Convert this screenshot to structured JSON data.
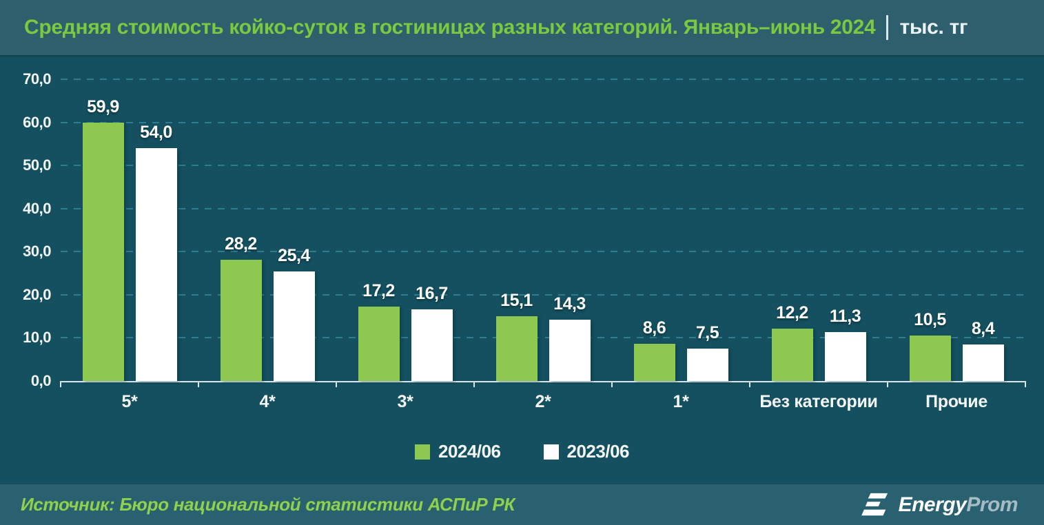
{
  "header": {
    "title": "Средняя стоимость койко-суток в гостиницах разных категорий. Январь–июнь 2024",
    "unit": "тыс. тг"
  },
  "chart_data": {
    "type": "bar",
    "title": "Средняя стоимость койко-суток в гостиницах разных категорий. Январь–июнь 2024",
    "unit": "тыс. тг",
    "categories": [
      "5*",
      "4*",
      "3*",
      "2*",
      "1*",
      "Без категории",
      "Прочие"
    ],
    "series": [
      {
        "name": "2024/06",
        "color": "#8DC951",
        "values": [
          59.9,
          28.2,
          17.2,
          15.1,
          8.6,
          12.2,
          10.5
        ],
        "labels": [
          "59,9",
          "28,2",
          "17,2",
          "15,1",
          "8,6",
          "12,2",
          "10,5"
        ]
      },
      {
        "name": "2023/06",
        "color": "#FFFFFF",
        "values": [
          54.0,
          25.4,
          16.7,
          14.3,
          7.5,
          11.3,
          8.4
        ],
        "labels": [
          "54,0",
          "25,4",
          "16,7",
          "14,3",
          "7,5",
          "11,3",
          "8,4"
        ]
      }
    ],
    "ylim": [
      0,
      70
    ],
    "ytick_step": 10,
    "ytick_labels": [
      "70,0",
      "60,0",
      "50,0",
      "40,0",
      "30,0",
      "20,0",
      "10,0",
      "0,0"
    ],
    "grid": "horizontal-dashed",
    "legend_position": "bottom-center"
  },
  "footer": {
    "source": "Источник: Бюро национальной статистики АСПиР РК",
    "logo": {
      "part1": "Energy",
      "part2": "Prom"
    }
  },
  "colors": {
    "header_background": "#2D5F6D",
    "chart_background": "#14505F",
    "footer_background": "#2A6170",
    "title_green": "#7CC840",
    "series_green": "#8DC951",
    "series_white": "#FFFFFF",
    "gridline": "#2E7C90",
    "axis_line": "#D9E6EA",
    "label_white": "#FFFFFF",
    "source_green": "#8FD14C",
    "logo_prom_gray": "#A6BCC4"
  }
}
